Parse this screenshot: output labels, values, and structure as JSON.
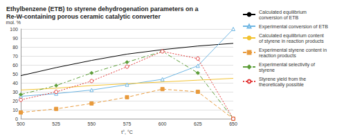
{
  "chart_data": {
    "type": "line",
    "title": "Ethylbenzene (ETB) to styrene dehydrogenation parameters on a Re-W-containing porous ceramic catalytic converter",
    "x_label": "t°, °C",
    "y_label": "mol. %",
    "x": [
      500,
      525,
      550,
      575,
      600,
      625,
      650
    ],
    "xlim": [
      500,
      650
    ],
    "xticks": [
      500,
      525,
      550,
      575,
      600,
      625,
      650
    ],
    "ylim": [
      0,
      100
    ],
    "yticks": [
      0,
      10,
      20,
      30,
      40,
      50,
      60,
      70,
      80,
      90,
      100
    ],
    "grid": true,
    "legend": "right",
    "series": [
      {
        "name": "Calculated equilibrium conversion of ETB",
        "color": "#000000",
        "marker": "none",
        "line_style": "solid",
        "values": [
          48,
          57,
          65,
          72,
          77,
          81,
          84
        ]
      },
      {
        "name": "Experimental conversion of ETB",
        "color": "#6fb6e3",
        "marker": "open-triangle",
        "line_style": "solid",
        "values": [
          25,
          28,
          32,
          38,
          44,
          59,
          100
        ]
      },
      {
        "name": "Calculated equilibrium content of styrene in reaction products",
        "color": "#f2c230",
        "marker": "none",
        "line_style": "solid",
        "values": [
          32,
          34,
          37,
          39,
          41,
          43,
          45
        ]
      },
      {
        "name": "Experimental styrene content in reaction products",
        "color": "#e89a3c",
        "marker": "square",
        "line_style": "dashed",
        "values": [
          7,
          11,
          17,
          24,
          33,
          30,
          0
        ]
      },
      {
        "name": "Experimental selectivity of styrene",
        "color": "#5e9e3a",
        "marker": "diamond",
        "line_style": "dashdot",
        "values": [
          27,
          37,
          51,
          63,
          75,
          51,
          0
        ]
      },
      {
        "name": "Styrene yield from the theoretically possible",
        "color": "#e23a3a",
        "marker": "open-circle",
        "line_style": "dotted",
        "values": [
          21,
          30,
          42,
          58,
          75,
          67,
          0
        ]
      }
    ]
  }
}
